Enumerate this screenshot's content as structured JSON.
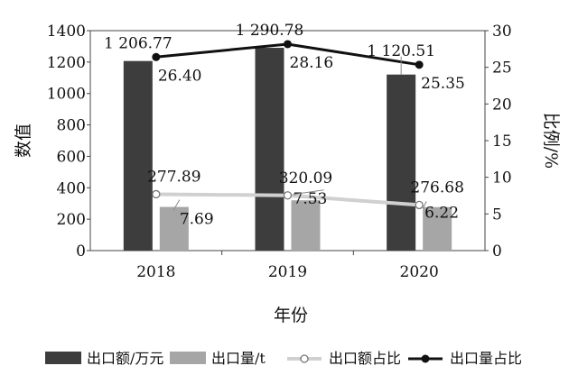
{
  "chart_data": {
    "type": "bar",
    "title": "",
    "categories": [
      "2018",
      "2019",
      "2020"
    ],
    "xlabel": "年份",
    "ylabel": "数值",
    "y2label": "比例/%",
    "ylim": [
      0,
      1400
    ],
    "y2lim": [
      0,
      30
    ],
    "yticks": [
      "0",
      "200",
      "400",
      "600",
      "800",
      "1000",
      "1200",
      "1400"
    ],
    "y2ticks": [
      "0",
      "5",
      "10",
      "15",
      "20",
      "25",
      "30"
    ],
    "grid": false,
    "legend_position": "bottom",
    "series": [
      {
        "name": "出口额/万元",
        "type": "bar",
        "axis": "left",
        "color": "#3d3d3d",
        "values": [
          1206.77,
          1290.78,
          1120.51
        ],
        "labels": [
          "1 206.77",
          "1 290.78",
          "1 120.51"
        ]
      },
      {
        "name": "出口量/t",
        "type": "bar",
        "axis": "left",
        "color": "#a6a6a6",
        "values": [
          277.89,
          320.09,
          276.68
        ],
        "labels": [
          "277.89",
          "320.09",
          "276.68"
        ]
      },
      {
        "name": "出口额占比",
        "type": "line",
        "axis": "right",
        "color": "#d0d0d0",
        "marker": "open-circle",
        "values": [
          7.69,
          7.53,
          6.22
        ],
        "labels": [
          "7.69",
          "7.53",
          "6.22"
        ]
      },
      {
        "name": "出口量占比",
        "type": "line",
        "axis": "right",
        "color": "#111111",
        "marker": "filled-circle",
        "values": [
          26.4,
          28.16,
          25.35
        ],
        "labels": [
          "26.40",
          "28.16",
          "25.35"
        ]
      }
    ]
  }
}
